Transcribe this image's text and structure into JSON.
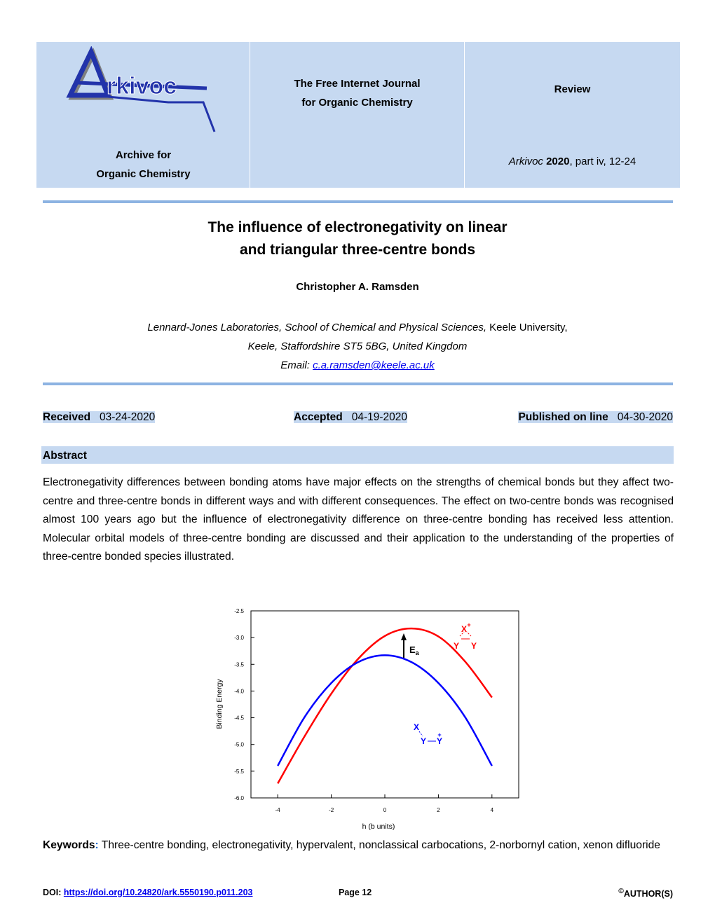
{
  "header": {
    "logo": "rkivoc",
    "journal_line1": "The Free Internet Journal",
    "journal_line2": "for Organic Chemistry",
    "article_type": "Review",
    "archive_line1": "Archive for",
    "archive_line2": "Organic Chemistry",
    "citation_journal": "Arkivoc",
    "citation_year": "2020",
    "citation_rest": ", part iv, 12-24"
  },
  "title_line1": "The influence of electronegativity on linear",
  "title_line2": "and triangular three-centre bonds",
  "author": "Christopher A. Ramsden",
  "affiliation": {
    "line1_italic": "Lennard-Jones Laboratories, School of Chemical and Physical Sciences,",
    "line1_rest": "Keele University,",
    "line2": "Keele, Staffordshire ST5 5BG, United Kingdom",
    "email_label": "Email:",
    "email": "c.a.ramsden@keele.ac.uk"
  },
  "dates": {
    "received_label": "Received",
    "received": "03-24-2020",
    "accepted_label": "Accepted",
    "accepted": "04-19-2020",
    "published_label": "Published on line",
    "published": "04-30-2020"
  },
  "abstract": {
    "heading": "Abstract",
    "text": "Electronegativity differences between bonding atoms have major effects on the strengths of chemical bonds but they affect two-centre and three-centre bonds in different ways and with different consequences. The effect on two-centre bonds was recognised almost 100 years ago but the influence of electronegativity difference on three-centre bonding has received less attention. Molecular orbital models of three-centre bonding are discussed and their application to the understanding of the properties of three-centre bonded species illustrated."
  },
  "chart_data": {
    "type": "line",
    "xlabel": "h (b units)",
    "ylabel": "Binding Energy",
    "x": [
      -4,
      -3,
      -2,
      -1,
      0,
      1,
      2,
      3,
      4
    ],
    "series": [
      {
        "color": "#ff0000",
        "values": [
          -5.73,
          -4.85,
          -4.05,
          -3.4,
          -2.97,
          -2.83,
          -2.98,
          -3.45,
          -4.12
        ]
      },
      {
        "color": "#0000ff",
        "values": [
          -5.4,
          -4.49,
          -3.85,
          -3.46,
          -3.33,
          -3.46,
          -3.85,
          -4.49,
          -5.4
        ]
      }
    ],
    "xlim": [
      -5,
      5
    ],
    "ylim": [
      -6,
      -2.5
    ],
    "xticks": [
      -4,
      -2,
      0,
      2,
      4
    ],
    "yticks": [
      -2.5,
      {
        "value": -3,
        "label": "-3.0"
      },
      -3.5,
      {
        "value": -4,
        "label": "-4.0"
      },
      -4.5,
      {
        "value": -5,
        "label": "-5.0"
      },
      -5.5,
      {
        "value": -6,
        "label": "-6.0"
      }
    ],
    "ea_label": "E",
    "ea_subscript": "a",
    "annotations_red": [
      "X",
      "+",
      "Y",
      "Y"
    ],
    "annotations_blue": [
      "X",
      "+",
      "Y",
      "Y"
    ]
  },
  "keywords": {
    "label": "Keywords",
    "colon": ":",
    "text": "Three-centre bonding, electronegativity, hypervalent, nonclassical carbocations, 2-norbornyl cation, xenon difluoride"
  },
  "footer": {
    "doi_label": "DOI:",
    "doi": "https://doi.org/10.24820/ark.5550190.p011.203",
    "page": "Page 12",
    "copyright": "©",
    "rights": "AUTHOR(S)"
  }
}
